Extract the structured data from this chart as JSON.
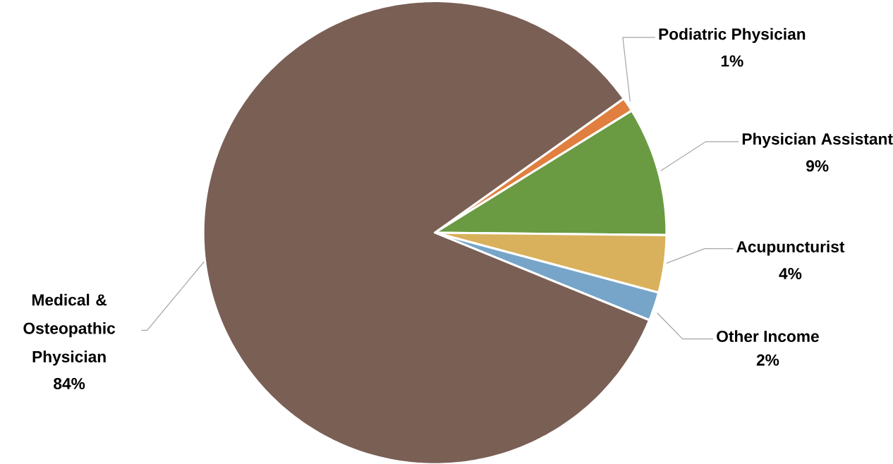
{
  "chart_data": {
    "type": "pie",
    "categories": [
      "Podiatric Physician",
      "Physician Assistant",
      "Acupuncturist",
      "Other Income",
      "Medical & Osteopathic Physician"
    ],
    "values": [
      1,
      9,
      4,
      2,
      84
    ],
    "value_labels": [
      "1%",
      "9%",
      "4%",
      "2%",
      "84%"
    ],
    "colors": [
      "#e07f3f",
      "#6a9a42",
      "#d9b15c",
      "#76a5c9",
      "#7a5f55"
    ]
  }
}
